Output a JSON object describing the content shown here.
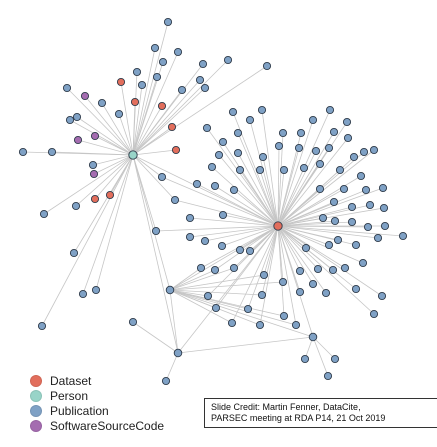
{
  "legend": [
    {
      "label": "Dataset",
      "color": "#E26E5C"
    },
    {
      "label": "Person",
      "color": "#98D4C8"
    },
    {
      "label": "Publication",
      "color": "#7FA1C5"
    },
    {
      "label": "SoftwareSourceCode",
      "color": "#A46CB0"
    }
  ],
  "credit": {
    "line1": "Slide Credit: Martin Fenner, DataCite,",
    "line2": "PARSEC meeting at RDA P14, 21 Oct 2019"
  }
}
